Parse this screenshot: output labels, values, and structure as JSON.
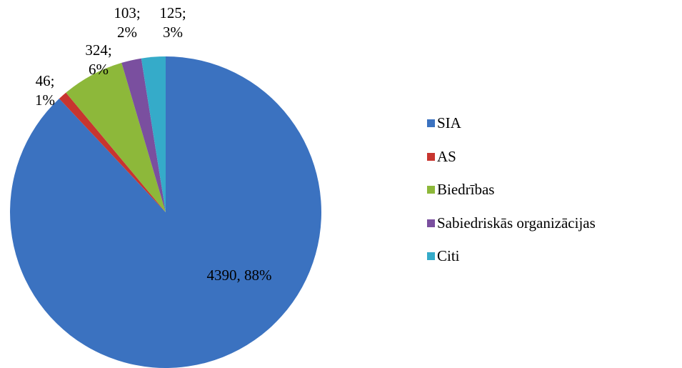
{
  "chart_data": {
    "type": "pie",
    "categories": [
      "SIA",
      "AS",
      "Biedrības",
      "Sabiedriskās organizācijas",
      "Citi"
    ],
    "values": [
      4390,
      46,
      324,
      103,
      125
    ],
    "value_labels": [
      "4390, 88%",
      "46; 1%",
      "324; 6%",
      "103; 2%",
      "125; 3%"
    ],
    "colors": [
      "#3b72c0",
      "#c8352f",
      "#8db83a",
      "#7a4f9f",
      "#35abc9"
    ],
    "legend": "right"
  }
}
